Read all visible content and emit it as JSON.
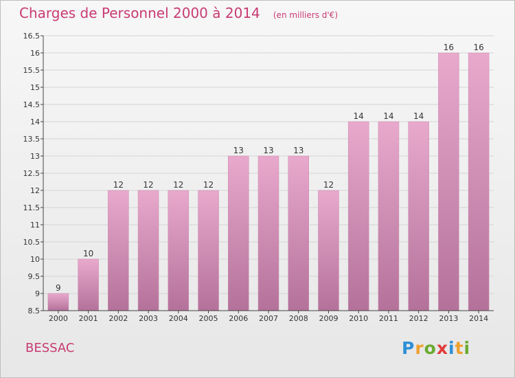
{
  "header": {
    "title": "Charges de Personnel 2000 à 2014",
    "subtitle": "(en milliers d'€)"
  },
  "footer": {
    "place": "BESSAC",
    "logo_letters": [
      "P",
      "r",
      "o",
      "x",
      "i",
      "t",
      "i"
    ],
    "logo_colors": [
      "#2e8fd6",
      "#f0a030",
      "#6aaa2e",
      "#e23a3a",
      "#2e8fd6",
      "#f0a030",
      "#6aaa2e"
    ]
  },
  "chart_data": {
    "type": "bar",
    "categories": [
      "2000",
      "2001",
      "2002",
      "2003",
      "2004",
      "2005",
      "2006",
      "2007",
      "2008",
      "2009",
      "2010",
      "2011",
      "2012",
      "2013",
      "2014"
    ],
    "values": [
      9,
      10,
      12,
      12,
      12,
      12,
      13,
      13,
      13,
      12,
      14,
      14,
      14,
      16,
      16
    ],
    "data_labels": [
      "9",
      "10",
      "12",
      "12",
      "12",
      "12",
      "13",
      "13",
      "13",
      "12",
      "14",
      "14",
      "14",
      "16",
      "16"
    ],
    "y_ticks": [
      "8.5",
      "9",
      "9.5",
      "10",
      "10.5",
      "11",
      "11.5",
      "12",
      "12.5",
      "13",
      "13.5",
      "14",
      "14.5",
      "15",
      "15.5",
      "16",
      "16.5"
    ],
    "ylim": [
      8.5,
      16.5
    ],
    "grid": true,
    "bar_color": "#d98cb5",
    "title": "Charges de Personnel 2000 à 2014",
    "xlabel": "",
    "ylabel": ""
  }
}
